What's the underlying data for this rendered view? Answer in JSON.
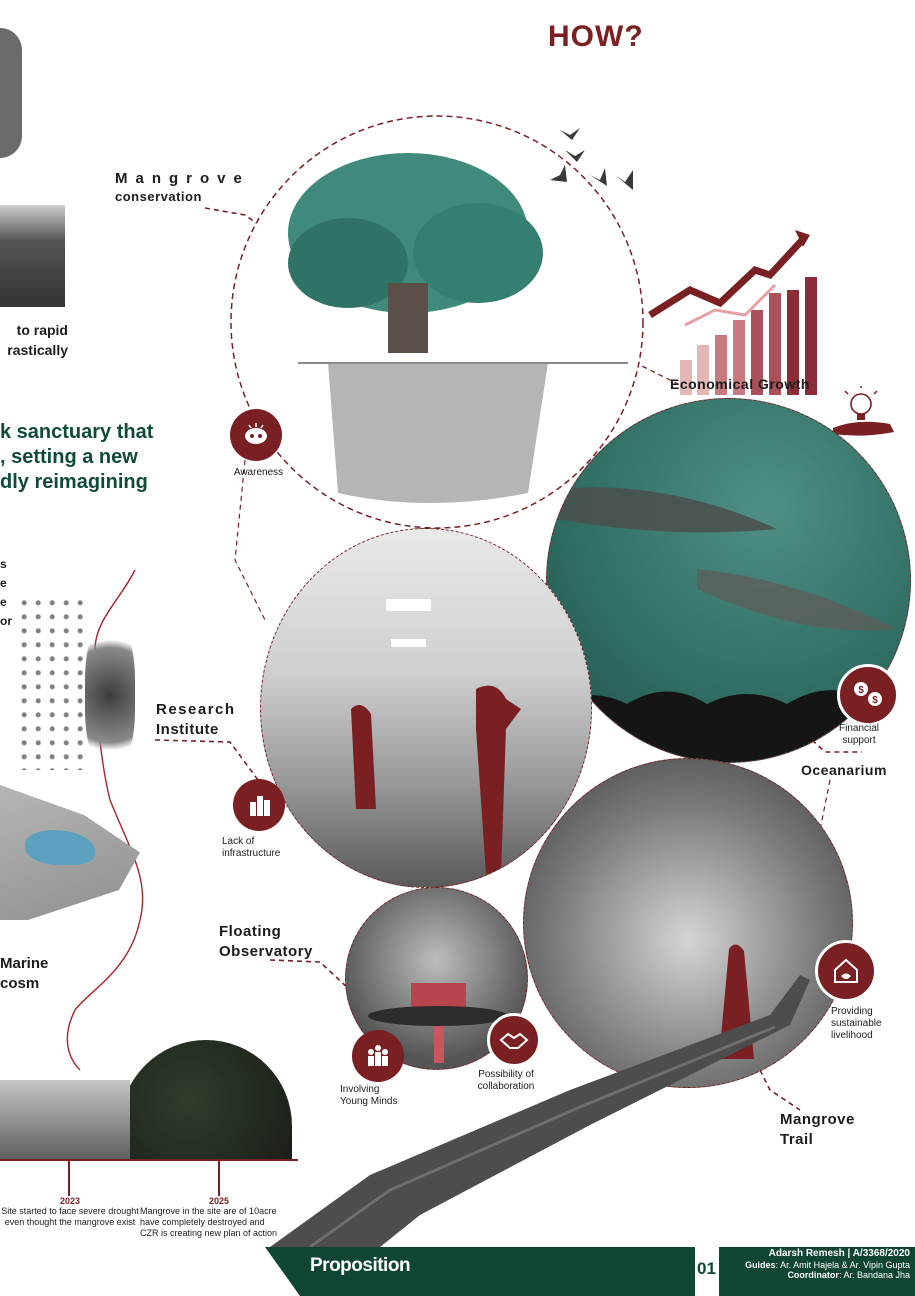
{
  "page": {
    "heading": "HOW?"
  },
  "labels": {
    "mangrove_conservation_line1": "Mangrove",
    "mangrove_conservation_line2": "conservation",
    "economical_growth": "Economical Growth",
    "research_institute_line1": "Research",
    "research_institute_line2": "Institute",
    "oceanarium": "Oceanarium",
    "floating_observatory_line1": "Floating",
    "floating_observatory_line2": "Observatory",
    "mangrove_trail_line1": "Mangrove",
    "mangrove_trail_line2": "Trail"
  },
  "left_text": {
    "rapid_line1": "to  rapid",
    "rapid_line2": "rastically",
    "headline_line1": "k sanctuary that",
    "headline_line2": ", setting a new",
    "headline_line3": "dly reimagining",
    "fragment_s": "s",
    "fragment_e1": "e",
    "fragment_e2": "e",
    "fragment_or": "or",
    "marine_line1": "Marine",
    "marine_line2": "cosm"
  },
  "icons": {
    "awareness": {
      "label": "Awareness"
    },
    "lack_of_infrastructure": {
      "label_line1": "Lack of",
      "label_line2": "infrastructure"
    },
    "financial_support": {
      "label_line1": "Financial",
      "label_line2": "support"
    },
    "providing_livelihood": {
      "label_line1": "Providing",
      "label_line2": "sustainable",
      "label_line3": "livelihood"
    },
    "involving_young_minds": {
      "label_line1": "Involving",
      "label_line2": "Young Minds"
    },
    "possibility_of_collaboration": {
      "label_line1": "Possibility of",
      "label_line2": "collaboration"
    }
  },
  "timeline": {
    "items": [
      {
        "year": "2023",
        "line1": "Site started to face severe drought",
        "line2": "even thought the mangrove exist",
        "line3": ""
      },
      {
        "year": "2025",
        "line1": "Mangrove in the site are of 10acre",
        "line2": "have completely destroyed and",
        "line3": "CZR is creating new plan of action"
      }
    ]
  },
  "footer": {
    "section": "Proposition",
    "page_number": "01",
    "author": "Adarsh Remesh  |  A/3368/2020",
    "guides_label": "Guides",
    "guides": ": Ar. Amit Hajela & Ar. Vipin Gupta",
    "coordinator_label": "Coordinator",
    "coordinator": ": Ar. Bandana Jha"
  },
  "colors": {
    "accent": "#7a1f22",
    "green": "#0f4535",
    "teal": "#2f6b60"
  }
}
